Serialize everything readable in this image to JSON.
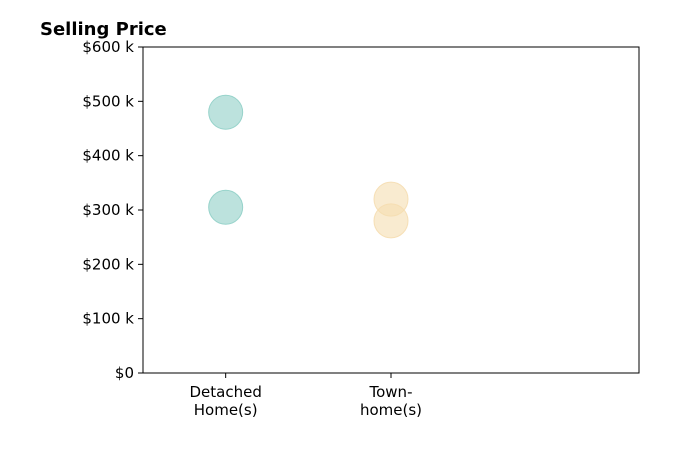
{
  "chart_data": {
    "type": "scatter",
    "title": "Selling Price",
    "xlabel": "",
    "ylabel": "",
    "categories": [
      [
        "Detached",
        "Home(s)"
      ],
      [
        "Town-",
        "home(s)"
      ]
    ],
    "xlim": [
      -0.5,
      2.5
    ],
    "ylim": [
      0,
      600000
    ],
    "y_ticks": [
      0,
      100000,
      200000,
      300000,
      400000,
      500000,
      600000
    ],
    "y_tick_labels": [
      "$0",
      "$100 k",
      "$200 k",
      "$300 k",
      "$400 k",
      "$500 k",
      "$600 k"
    ],
    "grid": false,
    "legend": "none",
    "series": [
      {
        "category_index": 0,
        "color": "#8fcfc6",
        "points": [
          480000,
          305000
        ]
      },
      {
        "category_index": 1,
        "color": "#f5ddb0",
        "points": [
          320000,
          280000
        ]
      }
    ]
  }
}
